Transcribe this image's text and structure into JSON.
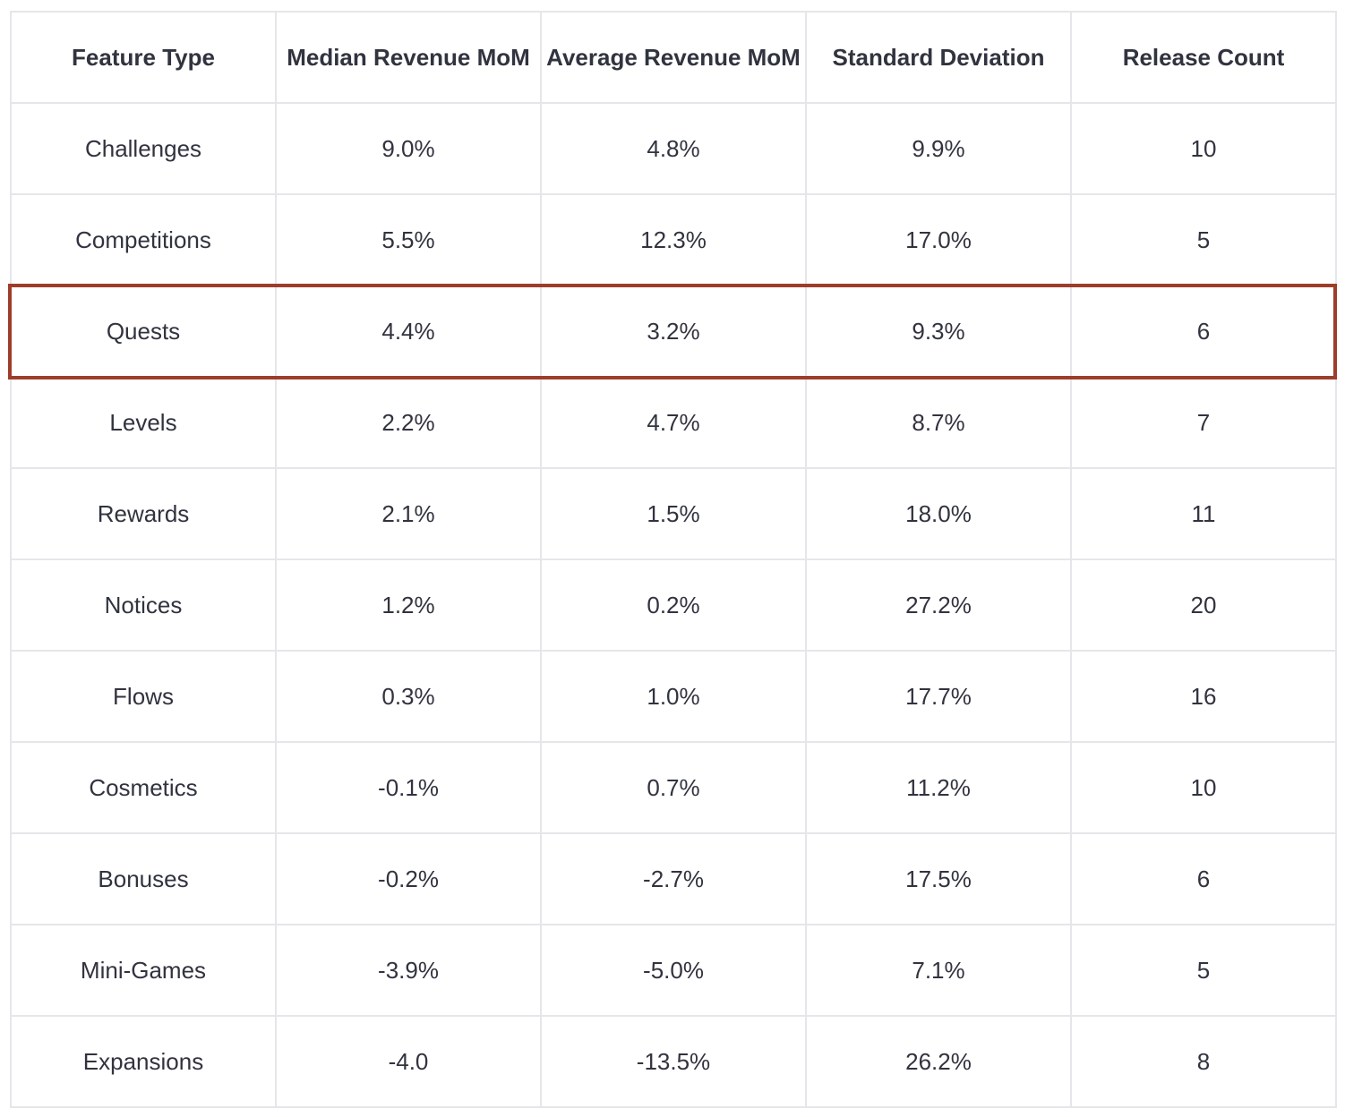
{
  "table": {
    "headers": [
      "Feature Type",
      "Median Revenue MoM",
      "Average Revenue MoM",
      "Standard Deviation",
      "Release Count"
    ],
    "rows": [
      [
        "Challenges",
        "9.0%",
        "4.8%",
        "9.9%",
        "10"
      ],
      [
        "Competitions",
        "5.5%",
        "12.3%",
        "17.0%",
        "5"
      ],
      [
        "Quests",
        "4.4%",
        "3.2%",
        "9.3%",
        "6"
      ],
      [
        "Levels",
        "2.2%",
        "4.7%",
        "8.7%",
        "7"
      ],
      [
        "Rewards",
        "2.1%",
        "1.5%",
        "18.0%",
        "11"
      ],
      [
        "Notices",
        "1.2%",
        "0.2%",
        "27.2%",
        "20"
      ],
      [
        "Flows",
        "0.3%",
        "1.0%",
        "17.7%",
        "16"
      ],
      [
        "Cosmetics",
        "-0.1%",
        "0.7%",
        "11.2%",
        "10"
      ],
      [
        "Bonuses",
        "-0.2%",
        "-2.7%",
        "17.5%",
        "6"
      ],
      [
        "Mini-Games",
        "-3.9%",
        "-5.0%",
        "7.1%",
        "5"
      ],
      [
        "Expansions",
        "-4.0",
        "-13.5%",
        "26.2%",
        "8"
      ]
    ],
    "highlighted_row": "Quests",
    "highlight_color": "#9d3d2a",
    "border_color": "#e6e6ea",
    "text_color": "#31333f"
  }
}
